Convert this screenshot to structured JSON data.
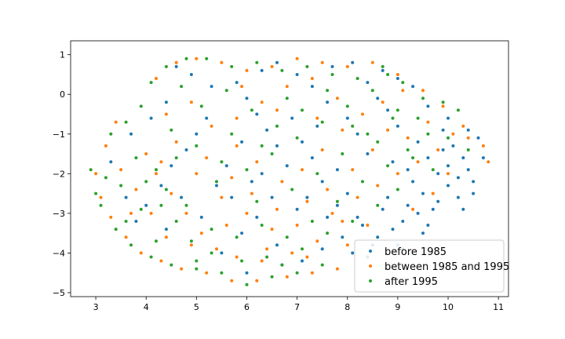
{
  "chart_data": {
    "type": "scatter",
    "title": "",
    "xlabel": "",
    "ylabel": "",
    "xlim": [
      2.5,
      11.2
    ],
    "ylim": [
      -5.1,
      1.35
    ],
    "x_ticks": [
      3,
      4,
      5,
      6,
      7,
      8,
      9,
      10,
      11
    ],
    "y_ticks": [
      1,
      0,
      -1,
      -2,
      -3,
      -4,
      -5
    ],
    "x_tick_labels": [
      "3",
      "4",
      "5",
      "6",
      "7",
      "8",
      "9",
      "10",
      "11"
    ],
    "y_tick_labels": [
      "1",
      "0",
      "−1",
      "−2",
      "−3",
      "−4",
      "−5"
    ],
    "grid": false,
    "legend_position": "lower-right",
    "series": [
      {
        "name": "before 1985",
        "color": "#1f77b4",
        "points": [
          [
            8.3,
            -3.3
          ],
          [
            8.6,
            -3.6
          ],
          [
            9.0,
            -3.8
          ],
          [
            9.4,
            -3.0
          ],
          [
            9.6,
            -3.3
          ],
          [
            9.8,
            -2.7
          ],
          [
            10.0,
            -2.3
          ],
          [
            10.2,
            -2.1
          ],
          [
            10.4,
            -1.9
          ],
          [
            10.5,
            -2.2
          ],
          [
            10.3,
            -1.6
          ],
          [
            10.1,
            -1.3
          ],
          [
            9.9,
            -0.9
          ],
          [
            10.4,
            -0.9
          ],
          [
            10.6,
            -1.1
          ],
          [
            9.7,
            -2.9
          ],
          [
            9.2,
            -2.8
          ],
          [
            8.8,
            -2.6
          ],
          [
            8.9,
            -3.4
          ],
          [
            8.5,
            -3.8
          ],
          [
            8.2,
            -3.1
          ],
          [
            8.7,
            -2.9
          ],
          [
            9.1,
            -3.2
          ],
          [
            9.5,
            -2.5
          ],
          [
            9.3,
            -2.2
          ],
          [
            9.8,
            -2.0
          ],
          [
            10.0,
            -1.8
          ],
          [
            10.2,
            -2.6
          ],
          [
            9.6,
            -1.6
          ],
          [
            9.4,
            -1.2
          ],
          [
            9.0,
            -0.8
          ],
          [
            8.8,
            -0.4
          ],
          [
            8.6,
            -0.1
          ],
          [
            8.4,
            0.3
          ],
          [
            8.7,
            0.6
          ],
          [
            9.0,
            0.4
          ],
          [
            9.3,
            0.2
          ],
          [
            9.6,
            -0.3
          ],
          [
            10.0,
            -0.6
          ],
          [
            8.0,
            -2.5
          ],
          [
            7.8,
            -2.8
          ],
          [
            7.6,
            -3.1
          ],
          [
            7.9,
            -3.6
          ],
          [
            8.1,
            -4.0
          ],
          [
            7.5,
            -2.2
          ],
          [
            7.2,
            -2.6
          ],
          [
            7.0,
            -2.9
          ],
          [
            6.8,
            -1.8
          ],
          [
            6.6,
            -1.3
          ],
          [
            6.4,
            -0.9
          ],
          [
            6.2,
            -0.5
          ],
          [
            6.0,
            -0.1
          ],
          [
            5.8,
            0.3
          ],
          [
            6.3,
            0.6
          ],
          [
            6.6,
            0.8
          ],
          [
            7.0,
            0.5
          ],
          [
            7.3,
            0.2
          ],
          [
            7.6,
            -0.2
          ],
          [
            7.4,
            -0.8
          ],
          [
            7.1,
            -1.2
          ],
          [
            6.9,
            -0.6
          ],
          [
            5.6,
            -1.8
          ],
          [
            5.4,
            -2.3
          ],
          [
            5.7,
            -2.6
          ],
          [
            6.1,
            -2.2
          ],
          [
            6.5,
            -2.6
          ],
          [
            6.2,
            -3.1
          ],
          [
            5.9,
            -3.5
          ],
          [
            6.6,
            -3.8
          ],
          [
            7.1,
            -4.2
          ],
          [
            7.5,
            -3.9
          ],
          [
            5.2,
            -0.6
          ],
          [
            5.0,
            -1.0
          ],
          [
            4.8,
            -1.4
          ],
          [
            4.5,
            -1.8
          ],
          [
            4.3,
            -2.3
          ],
          [
            4.0,
            -2.8
          ],
          [
            3.8,
            -3.2
          ],
          [
            5.3,
            0.2
          ],
          [
            4.9,
            0.5
          ],
          [
            4.6,
            0.7
          ],
          [
            8.4,
            -1.5
          ],
          [
            8.2,
            -1.0
          ],
          [
            8.0,
            -0.6
          ],
          [
            7.8,
            -1.9
          ],
          [
            9.9,
            -1.4
          ],
          [
            10.7,
            -1.6
          ],
          [
            10.5,
            -2.5
          ],
          [
            10.3,
            -2.9
          ],
          [
            9.5,
            -3.5
          ],
          [
            9.1,
            -3.9
          ],
          [
            8.4,
            -4.1
          ],
          [
            8.9,
            -1.7
          ],
          [
            9.2,
            -1.9
          ],
          [
            7.7,
            0.7
          ],
          [
            8.1,
            0.8
          ],
          [
            5.5,
            -4.0
          ],
          [
            6.0,
            -4.5
          ],
          [
            6.7,
            -4.3
          ],
          [
            4.4,
            -3.4
          ],
          [
            3.6,
            -2.6
          ],
          [
            3.3,
            -1.7
          ],
          [
            3.7,
            -1.0
          ],
          [
            4.1,
            -0.6
          ],
          [
            4.4,
            -0.2
          ],
          [
            6.3,
            -2.0
          ],
          [
            7.3,
            -1.6
          ],
          [
            5.9,
            -1.2
          ],
          [
            4.7,
            -2.6
          ],
          [
            5.1,
            -3.1
          ]
        ]
      },
      {
        "name": "between 1985 and 1995",
        "color": "#ff7f0e",
        "points": [
          [
            3.4,
            -0.7
          ],
          [
            3.2,
            -1.3
          ],
          [
            3.0,
            -2.0
          ],
          [
            3.1,
            -2.6
          ],
          [
            3.3,
            -3.1
          ],
          [
            3.6,
            -3.6
          ],
          [
            3.9,
            -4.0
          ],
          [
            4.3,
            -4.2
          ],
          [
            4.7,
            -4.4
          ],
          [
            5.2,
            -4.5
          ],
          [
            5.7,
            -4.7
          ],
          [
            6.2,
            -4.7
          ],
          [
            6.8,
            -4.6
          ],
          [
            7.3,
            -4.5
          ],
          [
            7.8,
            -4.4
          ],
          [
            4.0,
            -1.5
          ],
          [
            4.2,
            -2.0
          ],
          [
            4.5,
            -2.5
          ],
          [
            4.8,
            -3.0
          ],
          [
            5.1,
            -3.5
          ],
          [
            5.4,
            -3.9
          ],
          [
            5.8,
            -4.1
          ],
          [
            6.3,
            -4.2
          ],
          [
            6.9,
            -4.0
          ],
          [
            7.4,
            -3.7
          ],
          [
            7.9,
            -3.2
          ],
          [
            4.2,
            0.4
          ],
          [
            4.6,
            0.8
          ],
          [
            5.0,
            0.9
          ],
          [
            5.5,
            0.8
          ],
          [
            6.0,
            0.6
          ],
          [
            6.5,
            0.7
          ],
          [
            7.0,
            0.9
          ],
          [
            7.5,
            0.8
          ],
          [
            8.0,
            0.7
          ],
          [
            8.5,
            0.8
          ],
          [
            9.0,
            0.5
          ],
          [
            9.5,
            0.1
          ],
          [
            9.9,
            -0.3
          ],
          [
            10.3,
            -0.8
          ],
          [
            10.7,
            -1.3
          ],
          [
            10.8,
            -1.7
          ],
          [
            10.4,
            -1.1
          ],
          [
            4.4,
            -0.5
          ],
          [
            4.9,
            -0.2
          ],
          [
            5.3,
            -0.8
          ],
          [
            5.8,
            -1.3
          ],
          [
            6.2,
            -1.7
          ],
          [
            6.7,
            -2.2
          ],
          [
            7.2,
            -2.7
          ],
          [
            7.7,
            -3.0
          ],
          [
            8.2,
            -2.6
          ],
          [
            8.6,
            -2.3
          ],
          [
            9.0,
            -2.0
          ],
          [
            9.4,
            -1.7
          ],
          [
            9.8,
            -1.4
          ],
          [
            8.8,
            -0.9
          ],
          [
            8.3,
            -0.5
          ],
          [
            7.8,
            -0.1
          ],
          [
            7.3,
            0.4
          ],
          [
            6.8,
            0.2
          ],
          [
            6.3,
            -0.2
          ],
          [
            5.8,
            -0.6
          ],
          [
            3.8,
            -2.4
          ],
          [
            4.1,
            -3.0
          ],
          [
            4.4,
            -3.6
          ],
          [
            5.0,
            -2.0
          ],
          [
            5.5,
            -2.6
          ],
          [
            6.0,
            -3.0
          ],
          [
            6.5,
            -3.4
          ],
          [
            7.0,
            -3.3
          ],
          [
            7.6,
            -2.4
          ],
          [
            8.1,
            -1.9
          ],
          [
            8.5,
            -1.4
          ],
          [
            9.2,
            -1.1
          ],
          [
            9.6,
            -0.7
          ],
          [
            10.1,
            -1.0
          ],
          [
            4.6,
            -1.2
          ],
          [
            5.2,
            -1.6
          ],
          [
            5.7,
            -2.1
          ],
          [
            6.1,
            -2.5
          ],
          [
            6.6,
            -2.9
          ],
          [
            7.1,
            -1.9
          ],
          [
            7.5,
            -1.4
          ],
          [
            7.9,
            -0.9
          ],
          [
            3.5,
            -1.9
          ],
          [
            3.7,
            -3.0
          ],
          [
            4.9,
            -3.8
          ],
          [
            5.6,
            -3.3
          ],
          [
            6.4,
            -3.9
          ],
          [
            7.2,
            -4.1
          ],
          [
            8.0,
            -3.8
          ],
          [
            9.3,
            -2.9
          ],
          [
            9.7,
            -2.5
          ],
          [
            10.0,
            -2.0
          ],
          [
            4.3,
            -1.7
          ],
          [
            8.7,
            -0.2
          ],
          [
            9.1,
            0.1
          ],
          [
            5.9,
            0.2
          ],
          [
            6.6,
            -0.4
          ],
          [
            7.4,
            -0.6
          ],
          [
            8.4,
            -3.3
          ]
        ]
      },
      {
        "name": "after 1995",
        "color": "#2ca02c",
        "points": [
          [
            2.9,
            -1.9
          ],
          [
            3.0,
            -2.5
          ],
          [
            3.1,
            -2.8
          ],
          [
            3.4,
            -3.4
          ],
          [
            3.7,
            -3.8
          ],
          [
            4.1,
            -4.1
          ],
          [
            4.5,
            -4.3
          ],
          [
            5.0,
            -4.4
          ],
          [
            5.5,
            -4.5
          ],
          [
            6.0,
            -4.8
          ],
          [
            6.5,
            -4.6
          ],
          [
            7.0,
            -4.5
          ],
          [
            7.5,
            -4.3
          ],
          [
            3.3,
            -1.0
          ],
          [
            3.6,
            -0.7
          ],
          [
            3.9,
            -0.3
          ],
          [
            4.1,
            0.3
          ],
          [
            4.4,
            0.7
          ],
          [
            4.8,
            0.9
          ],
          [
            5.2,
            0.9
          ],
          [
            5.7,
            0.7
          ],
          [
            6.2,
            0.8
          ],
          [
            6.7,
            0.6
          ],
          [
            7.2,
            0.7
          ],
          [
            7.7,
            0.5
          ],
          [
            8.2,
            0.4
          ],
          [
            8.7,
            0.7
          ],
          [
            9.1,
            0.3
          ],
          [
            9.5,
            -0.1
          ],
          [
            9.9,
            -0.2
          ],
          [
            10.2,
            -0.4
          ],
          [
            3.8,
            -1.6
          ],
          [
            4.0,
            -2.2
          ],
          [
            4.3,
            -2.8
          ],
          [
            4.6,
            -3.2
          ],
          [
            4.9,
            -3.7
          ],
          [
            5.3,
            -4.0
          ],
          [
            5.8,
            -3.6
          ],
          [
            6.3,
            -3.3
          ],
          [
            6.8,
            -3.6
          ],
          [
            7.3,
            -3.2
          ],
          [
            7.8,
            -2.7
          ],
          [
            8.3,
            -2.2
          ],
          [
            8.8,
            -1.8
          ],
          [
            9.2,
            -1.4
          ],
          [
            9.6,
            -1.0
          ],
          [
            10.0,
            -1.1
          ],
          [
            10.4,
            -1.4
          ],
          [
            4.5,
            -0.9
          ],
          [
            5.0,
            -1.3
          ],
          [
            5.5,
            -1.7
          ],
          [
            6.0,
            -1.9
          ],
          [
            6.5,
            -1.5
          ],
          [
            7.0,
            -1.1
          ],
          [
            7.5,
            -0.7
          ],
          [
            8.0,
            -0.3
          ],
          [
            8.5,
            0.1
          ],
          [
            9.0,
            -0.4
          ],
          [
            9.4,
            -0.6
          ],
          [
            4.7,
            0.2
          ],
          [
            5.1,
            -0.3
          ],
          [
            5.6,
            0.1
          ],
          [
            6.1,
            -0.4
          ],
          [
            6.6,
            -0.8
          ],
          [
            7.1,
            -0.4
          ],
          [
            7.6,
            0.1
          ],
          [
            8.1,
            -0.8
          ],
          [
            8.6,
            -1.2
          ],
          [
            9.0,
            -2.4
          ],
          [
            8.6,
            -2.8
          ],
          [
            8.1,
            -3.2
          ],
          [
            7.6,
            -3.5
          ],
          [
            7.1,
            -3.9
          ],
          [
            6.4,
            -4.1
          ],
          [
            5.9,
            -4.2
          ],
          [
            5.3,
            -3.4
          ],
          [
            4.8,
            -2.8
          ],
          [
            4.4,
            -2.4
          ],
          [
            4.2,
            -1.9
          ],
          [
            3.5,
            -2.3
          ],
          [
            3.2,
            -2.1
          ],
          [
            3.9,
            -2.9
          ],
          [
            4.6,
            -1.6
          ],
          [
            5.4,
            -2.2
          ],
          [
            6.2,
            -2.7
          ],
          [
            6.9,
            -2.4
          ],
          [
            7.4,
            -2.0
          ],
          [
            7.9,
            -1.5
          ],
          [
            8.4,
            -1.0
          ],
          [
            8.9,
            -0.6
          ],
          [
            9.3,
            -1.6
          ],
          [
            9.7,
            -1.9
          ],
          [
            5.7,
            -1.0
          ],
          [
            6.3,
            -1.3
          ],
          [
            6.8,
            -0.1
          ],
          [
            4.2,
            -3.7
          ],
          [
            5.0,
            -4.2
          ],
          [
            6.7,
            -4.3
          ],
          [
            3.6,
            -3.2
          ],
          [
            8.8,
            0.5
          ]
        ]
      }
    ]
  }
}
